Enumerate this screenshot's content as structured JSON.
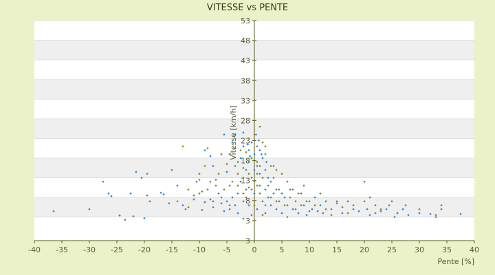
{
  "chart_data": {
    "type": "scatter",
    "title": "VITESSE vs PENTE",
    "xlabel": "Pente [%]",
    "ylabel": "Vitesse [km/h]",
    "xlim": [
      -40,
      40
    ],
    "ylim": [
      -3,
      53
    ],
    "xticks": [
      "-40",
      "-35",
      "-30",
      "-25",
      "-20",
      "-15",
      "-10",
      "-5",
      "0",
      "5",
      "10",
      "15",
      "20",
      "25",
      "30",
      "35",
      "40"
    ],
    "yticks": [
      "53",
      "48",
      "43",
      "38",
      "33",
      "28",
      "23",
      "18",
      "13",
      "8",
      "3",
      "3"
    ],
    "grid": "horizontal bands",
    "legend": "none",
    "colors": {
      "series_a": "#2b8ad6",
      "series_b": "#8a8a10",
      "plot_bg": "#ffffff",
      "band": "#efefef",
      "axis": "#5a5a20"
    },
    "series": [
      {
        "color": "#2b8ad6",
        "points": [
          [
            -36.5,
            4.5
          ],
          [
            -30,
            5
          ],
          [
            -27.5,
            12
          ],
          [
            -26.5,
            9
          ],
          [
            -26,
            8.3
          ],
          [
            -24.5,
            3.4
          ],
          [
            -23.5,
            2.3
          ],
          [
            -22,
            3.2
          ],
          [
            -21.5,
            14.5
          ],
          [
            -22.5,
            9
          ],
          [
            -20.5,
            13
          ],
          [
            -20,
            2.7
          ],
          [
            -19.5,
            8.5
          ],
          [
            -19,
            7
          ],
          [
            -17,
            9.2
          ],
          [
            -16.5,
            8.8
          ],
          [
            -15.5,
            6.5
          ],
          [
            -14,
            11
          ],
          [
            -13,
            6
          ],
          [
            -12.5,
            5
          ],
          [
            -11,
            7.5
          ],
          [
            -10.5,
            12
          ],
          [
            -10,
            9
          ],
          [
            -9.5,
            4.8
          ],
          [
            -9,
            6.8
          ],
          [
            -9,
            20
          ],
          [
            -8.5,
            10
          ],
          [
            -8,
            7.5
          ],
          [
            -7.5,
            5.5
          ],
          [
            -7,
            12.5
          ],
          [
            -6.5,
            9
          ],
          [
            -6,
            6.5
          ],
          [
            -5.5,
            4.5
          ],
          [
            -5,
            14.5
          ],
          [
            -5,
            7
          ],
          [
            -4.5,
            5
          ],
          [
            -4.5,
            11
          ],
          [
            -4,
            8
          ],
          [
            -4,
            22
          ],
          [
            -3.5,
            6
          ],
          [
            -3.5,
            16
          ],
          [
            -3,
            9
          ],
          [
            -3,
            4
          ],
          [
            -2.5,
            18
          ],
          [
            -2.5,
            12
          ],
          [
            -2,
            7
          ],
          [
            -2,
            21
          ],
          [
            -2,
            2.6
          ],
          [
            -1.5,
            15
          ],
          [
            -1.5,
            10
          ],
          [
            -1,
            20
          ],
          [
            -1,
            17
          ],
          [
            -1,
            6
          ],
          [
            -0.5,
            22
          ],
          [
            -0.5,
            13
          ],
          [
            -0.5,
            3.5
          ],
          [
            0,
            19
          ],
          [
            0,
            15
          ],
          [
            0,
            9
          ],
          [
            0.5,
            21
          ],
          [
            0.5,
            16
          ],
          [
            0.5,
            5
          ],
          [
            1,
            20
          ],
          [
            1,
            14
          ],
          [
            1,
            11
          ],
          [
            1.5,
            18
          ],
          [
            1.5,
            7
          ],
          [
            2,
            15
          ],
          [
            2,
            10
          ],
          [
            2,
            4
          ],
          [
            2.5,
            13
          ],
          [
            2.5,
            8
          ],
          [
            3,
            12
          ],
          [
            3,
            6
          ],
          [
            3.5,
            16
          ],
          [
            3.5,
            9
          ],
          [
            4,
            10
          ],
          [
            4,
            5
          ],
          [
            4.5,
            7
          ],
          [
            5,
            9
          ],
          [
            5,
            4
          ],
          [
            5.5,
            8
          ],
          [
            6,
            6
          ],
          [
            6.5,
            10
          ],
          [
            7,
            5
          ],
          [
            7.5,
            7
          ],
          [
            8,
            4
          ],
          [
            8.5,
            9
          ],
          [
            9,
            6
          ],
          [
            9.5,
            3.5
          ],
          [
            10,
            7
          ],
          [
            10.5,
            5
          ],
          [
            11,
            8
          ],
          [
            11.5,
            4.5
          ],
          [
            12,
            6
          ],
          [
            12.5,
            4
          ],
          [
            13,
            7
          ],
          [
            14,
            5
          ],
          [
            15,
            6.5
          ],
          [
            16,
            4
          ],
          [
            17,
            7
          ],
          [
            18,
            5
          ],
          [
            19,
            4.5
          ],
          [
            20,
            12
          ],
          [
            20.5,
            5
          ],
          [
            21,
            3.5
          ],
          [
            22,
            6
          ],
          [
            23,
            4.5
          ],
          [
            24,
            5
          ],
          [
            25,
            7
          ],
          [
            25.5,
            3
          ],
          [
            26,
            4
          ],
          [
            27,
            5
          ],
          [
            28,
            3.5
          ],
          [
            30,
            4
          ],
          [
            32,
            3.8
          ],
          [
            33,
            3
          ],
          [
            34,
            5
          ],
          [
            37.5,
            3.8
          ],
          [
            -7.5,
            16
          ],
          [
            -3.5,
            24
          ],
          [
            -2,
            24.5
          ],
          [
            -1.2,
            21.5
          ],
          [
            0.3,
            24
          ],
          [
            1.3,
            19
          ],
          [
            0.8,
            22.5
          ],
          [
            -0.8,
            18.5
          ],
          [
            2.2,
            17
          ],
          [
            -5.5,
            24
          ],
          [
            -8,
            18.5
          ]
        ]
      },
      {
        "color": "#8a8a10",
        "points": [
          [
            -13,
            21
          ],
          [
            -12,
            10
          ],
          [
            -11,
            8.5
          ],
          [
            -10,
            14
          ],
          [
            -9,
            16
          ],
          [
            -8.5,
            20.5
          ],
          [
            -8,
            12
          ],
          [
            -7,
            11
          ],
          [
            -6.5,
            14
          ],
          [
            -6,
            19
          ],
          [
            -5.5,
            10
          ],
          [
            -5,
            16.5
          ],
          [
            -4.5,
            19
          ],
          [
            -4,
            12
          ],
          [
            -3.5,
            20.5
          ],
          [
            -3,
            17
          ],
          [
            -3,
            11
          ],
          [
            -2.5,
            20
          ],
          [
            -2,
            13
          ],
          [
            -2,
            9
          ],
          [
            -1.5,
            19.5
          ],
          [
            -1.5,
            8
          ],
          [
            -1,
            14
          ],
          [
            -1,
            23
          ],
          [
            -0.5,
            18
          ],
          [
            -0.5,
            10
          ],
          [
            0,
            24
          ],
          [
            0,
            12
          ],
          [
            0,
            6
          ],
          [
            0.5,
            17
          ],
          [
            0.5,
            11
          ],
          [
            1,
            26
          ],
          [
            1,
            9
          ],
          [
            1.5,
            13
          ],
          [
            1.5,
            3.5
          ],
          [
            2,
            19
          ],
          [
            2,
            6
          ],
          [
            2.5,
            11
          ],
          [
            3,
            16
          ],
          [
            3,
            8
          ],
          [
            3.5,
            13
          ],
          [
            4,
            15
          ],
          [
            4,
            7
          ],
          [
            4.5,
            10
          ],
          [
            5,
            14
          ],
          [
            5.5,
            6
          ],
          [
            6,
            12
          ],
          [
            6,
            3
          ],
          [
            6.5,
            8
          ],
          [
            7,
            10
          ],
          [
            7.5,
            5
          ],
          [
            8,
            9
          ],
          [
            8.5,
            6
          ],
          [
            9,
            11
          ],
          [
            9.5,
            7
          ],
          [
            10,
            4.5
          ],
          [
            11,
            6
          ],
          [
            12,
            9
          ],
          [
            13,
            5
          ],
          [
            14,
            3.5
          ],
          [
            15,
            7
          ],
          [
            16,
            5.5
          ],
          [
            17,
            4
          ],
          [
            18,
            6
          ],
          [
            20,
            7
          ],
          [
            21,
            8
          ],
          [
            22,
            4
          ],
          [
            23,
            5
          ],
          [
            24.5,
            6
          ],
          [
            26,
            4
          ],
          [
            27.5,
            6
          ],
          [
            30,
            5
          ],
          [
            33,
            3.5
          ],
          [
            34,
            6
          ],
          [
            -15,
            15
          ],
          [
            -19.5,
            14
          ],
          [
            -14,
            7
          ],
          [
            -12,
            5.5
          ],
          [
            -10,
            12.5
          ],
          [
            -9.5,
            9.5
          ],
          [
            -7.5,
            7
          ],
          [
            -6,
            8
          ],
          [
            -4.5,
            6
          ],
          [
            -3,
            14
          ],
          [
            -2,
            15.5
          ],
          [
            -1,
            10.5
          ],
          [
            0.5,
            14
          ],
          [
            1,
            16
          ],
          [
            1.5,
            22
          ],
          [
            2,
            21
          ]
        ]
      }
    ]
  }
}
